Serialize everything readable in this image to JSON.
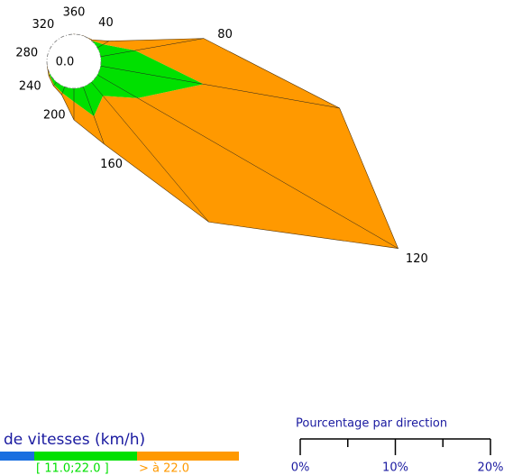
{
  "chart_data": {
    "type": "windrose",
    "calm": {
      "value": 0,
      "label": "0.0"
    },
    "directions": [
      0,
      20,
      40,
      60,
      80,
      100,
      120,
      140,
      160,
      180,
      200,
      220,
      240,
      260,
      280,
      300,
      320,
      340
    ],
    "direction_labels": [
      {
        "value": 0,
        "label": "360"
      },
      40,
      80,
      120,
      160,
      200,
      240,
      280,
      320
    ],
    "series": [
      {
        "color": "#1a6fe0",
        "values": [
          0.1,
          0.1,
          0.1,
          0.1,
          0.1,
          0.1,
          0.1,
          0.1,
          0.1,
          0.1,
          0.1,
          0.1,
          0.1,
          0.1,
          0.1,
          0.1,
          0.1,
          0.1
        ]
      },
      {
        "name": "[ 11.0;22.0 ]",
        "color": "#00e000",
        "values": [
          0,
          0,
          0.1,
          0.8,
          3.8,
          11.1,
          5.0,
          2.0,
          3.4,
          1.5,
          0.8,
          0.5,
          0.2,
          0,
          0,
          0,
          0,
          0
        ]
      },
      {
        "name": "> à 22.0",
        "color": "#ff9900",
        "values": [
          0.1,
          0.1,
          0.1,
          0.7,
          7.3,
          14.5,
          31.6,
          17.3,
          3.1,
          1.9,
          0.2,
          0.1,
          0.1,
          0.1,
          0,
          0,
          0,
          0
        ]
      }
    ],
    "legend_title": "de vitesses (km/h)",
    "scale_title": "Pourcentage par direction",
    "scale_lim": [
      0,
      20
    ],
    "scale_ticks": [
      {
        "value": 0,
        "label": "0%"
      },
      5,
      {
        "value": 10,
        "label": "10%"
      },
      15,
      {
        "value": 20,
        "label": "20%"
      }
    ]
  }
}
